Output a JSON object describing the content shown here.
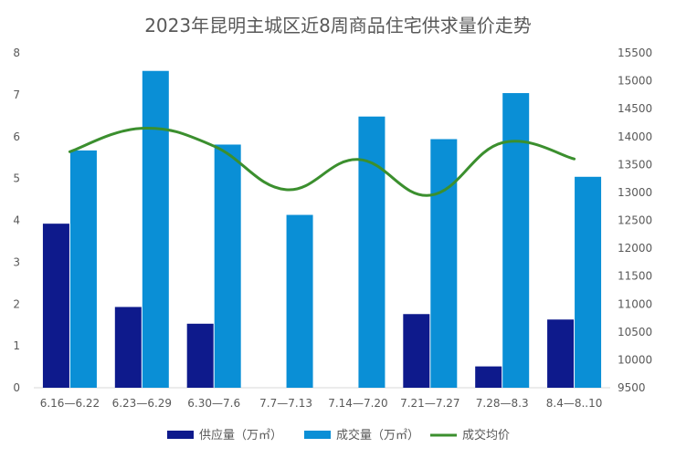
{
  "chart_data": {
    "type": "bar",
    "title": "2023年昆明主城区近8周商品住宅供求量价走势",
    "categories": [
      "6.16—6.22",
      "6.23—6.29",
      "6.30—7.6",
      "7.7—7.13",
      "7.14—7.20",
      "7.21—7.27",
      "7.28—8.3",
      "8.4—8..10"
    ],
    "series": [
      {
        "name": "供应量（万㎡）",
        "kind": "bar",
        "axis": "left",
        "color": "#0e1a8c",
        "values": [
          3.92,
          1.93,
          1.53,
          0,
          0,
          1.76,
          0.51,
          1.63
        ]
      },
      {
        "name": "成交量（万㎡）",
        "kind": "bar",
        "axis": "left",
        "color": "#0a8fd6",
        "values": [
          5.67,
          7.57,
          5.81,
          4.13,
          6.48,
          5.94,
          7.04,
          5.04
        ]
      },
      {
        "name": "成交均价",
        "kind": "line",
        "axis": "right",
        "color": "#3b8f2e",
        "values": [
          13730,
          14150,
          13830,
          13050,
          13590,
          12950,
          13890,
          13600
        ]
      }
    ],
    "y_left": {
      "min": 0,
      "max": 8,
      "ticks": [
        "0",
        "1",
        "2",
        "3",
        "4",
        "5",
        "6",
        "7",
        "8"
      ]
    },
    "y_right": {
      "min": 9500,
      "max": 15500,
      "ticks": [
        "9500",
        "10000",
        "10500",
        "11000",
        "11500",
        "12000",
        "12500",
        "13000",
        "13500",
        "14000",
        "14500",
        "15000",
        "15500"
      ]
    },
    "grid": false,
    "legend_position": "bottom"
  }
}
